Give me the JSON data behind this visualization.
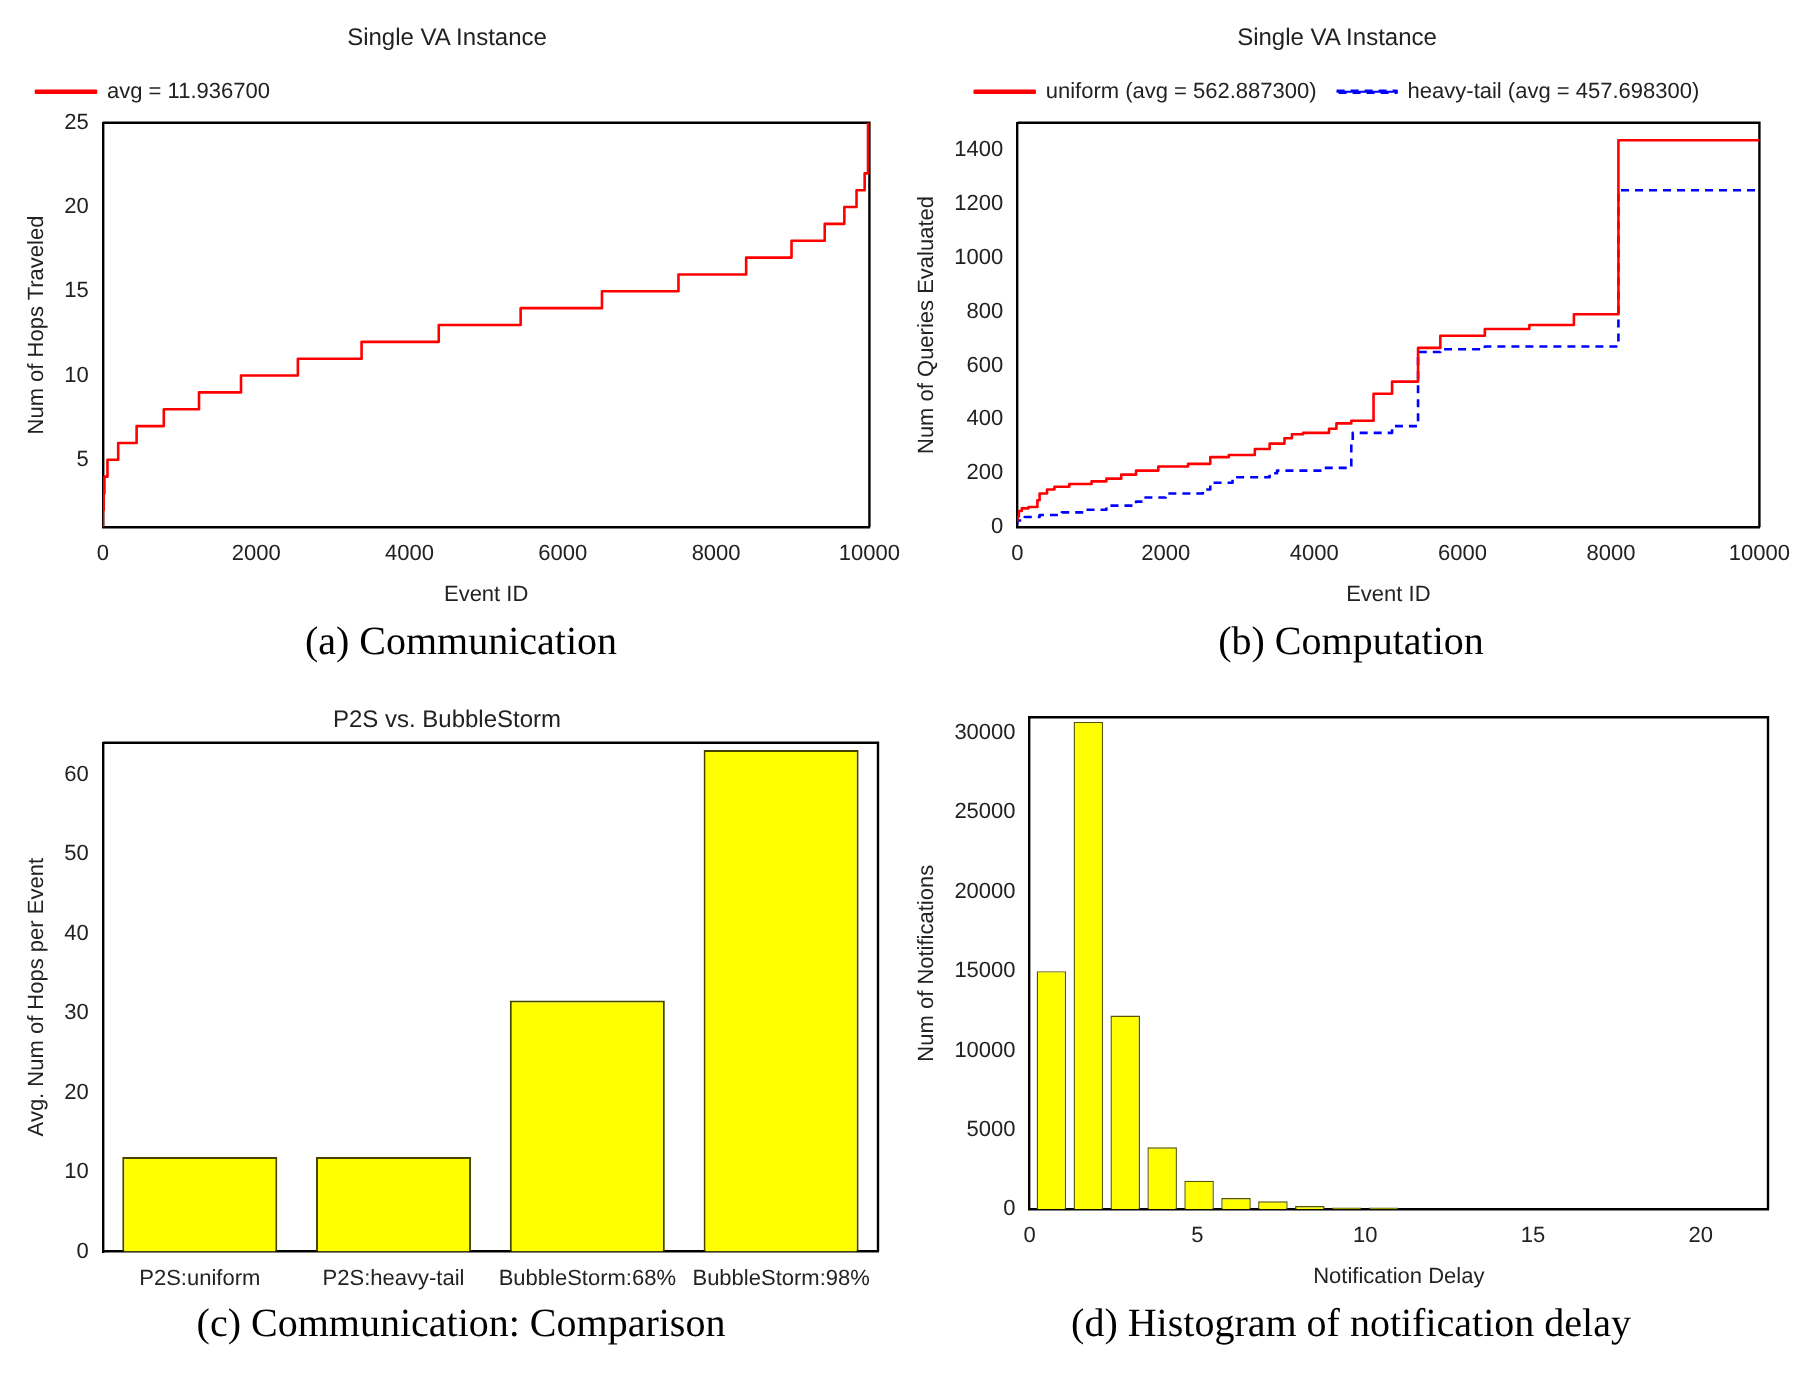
{
  "chart_data": [
    {
      "type": "step",
      "title": "Single VA Instance",
      "xlabel": "Event ID",
      "ylabel": "Num of Hops Traveled",
      "annotations": [
        "(a) Communication"
      ],
      "x": [
        0,
        10,
        20,
        60,
        200,
        440,
        795,
        1254,
        1802,
        2544,
        3375,
        4382,
        5450,
        6511,
        7509,
        8392,
        8984,
        9417,
        9673,
        9832,
        9938,
        9982,
        10000
      ],
      "series": [
        {
          "name": "avg = 11.936700",
          "color": "#ff0000",
          "values": [
            1,
            2,
            3,
            4,
            5,
            6,
            7,
            8,
            9,
            10,
            11,
            12,
            13,
            14,
            15,
            16,
            17,
            18,
            19,
            20,
            21,
            22,
            25
          ]
        }
      ],
      "xlim": [
        0,
        10000
      ],
      "xticks": [
        0,
        2000,
        4000,
        6000,
        8000,
        10000
      ],
      "ylim": [
        1,
        25
      ],
      "yticks": [
        5,
        10,
        15,
        20,
        25
      ],
      "legend": "top left"
    },
    {
      "type": "step",
      "title": "Single VA Instance",
      "xlabel": "Event ID",
      "ylabel": "Num of Queries Evaluated",
      "annotations": [
        "(b) Computation"
      ],
      "series": [
        {
          "name": "uniform (avg = 562.887300)",
          "color": "#ff0000",
          "line_style": "solid",
          "x": [
            0,
            20,
            60,
            150,
            270,
            300,
            400,
            500,
            700,
            1000,
            1200,
            1400,
            1600,
            1900,
            2300,
            2600,
            2850,
            3200,
            3400,
            3600,
            3700,
            3850,
            4200,
            4300,
            4500,
            4800,
            5050,
            5400,
            5700,
            6300,
            6900,
            7500,
            8100,
            8700,
            10000
          ],
          "values": [
            20,
            40,
            60,
            70,
            75,
            100,
            125,
            140,
            150,
            160,
            170,
            180,
            195,
            210,
            225,
            235,
            260,
            268,
            290,
            310,
            330,
            345,
            350,
            365,
            385,
            395,
            495,
            540,
            665,
            710,
            735,
            750,
            790,
            1435,
            1435
          ]
        },
        {
          "name": "heavy-tail (avg = 457.698300)",
          "color": "#0000ff",
          "line_style": "dashed",
          "x": [
            0,
            100,
            300,
            600,
            900,
            1200,
            1600,
            1700,
            2000,
            2500,
            2600,
            2900,
            3400,
            3500,
            4100,
            4500,
            4520,
            5050,
            5400,
            5700,
            6300,
            8100,
            8700,
            10000
          ],
          "values": [
            10,
            25,
            38,
            45,
            55,
            65,
            80,
            95,
            110,
            125,
            140,
            165,
            185,
            200,
            210,
            220,
            315,
            350,
            375,
            650,
            660,
            670,
            1250,
            1250
          ]
        }
      ],
      "xlim": [
        0,
        10000
      ],
      "xticks": [
        0,
        2000,
        4000,
        6000,
        8000,
        10000
      ],
      "ylim": [
        0,
        1500
      ],
      "yticks": [
        0,
        200,
        400,
        600,
        800,
        1000,
        1200,
        1400
      ],
      "legend": "top"
    },
    {
      "type": "bar",
      "title": "P2S vs. BubbleStorm",
      "ylabel": "Avg. Num of Hops per Event",
      "annotations": [
        "(c) Communication: Comparison"
      ],
      "categories": [
        "P2S:uniform",
        "P2S:heavy-tail",
        "BubbleStorm:68%",
        "BubbleStorm:98%"
      ],
      "values": [
        11.9,
        11.9,
        31.6,
        63.1
      ],
      "color": "#ffff00",
      "ylim": [
        0,
        64
      ],
      "yticks": [
        0,
        10,
        20,
        30,
        40,
        50,
        60
      ]
    },
    {
      "type": "histogram",
      "xlabel": "Notification Delay",
      "ylabel": "Num of Notifications",
      "annotations": [
        "(d) Histogram of notification delay"
      ],
      "bins": [
        0.1,
        1.2,
        2.3,
        3.4,
        4.5,
        5.6,
        6.7,
        7.8,
        8.9,
        10,
        11.1,
        12.2,
        13.3,
        14.4,
        15.5
      ],
      "values": [
        15000,
        30700,
        12200,
        3900,
        1800,
        700,
        500,
        200,
        100,
        100,
        0,
        0,
        0,
        0
      ],
      "color": "#ffff00",
      "xlim": [
        0,
        22
      ],
      "xticks": [
        0,
        5,
        10,
        15,
        20
      ],
      "ylim": [
        0,
        31000
      ],
      "yticks": [
        0,
        5000,
        10000,
        15000,
        20000,
        25000,
        30000
      ]
    }
  ]
}
